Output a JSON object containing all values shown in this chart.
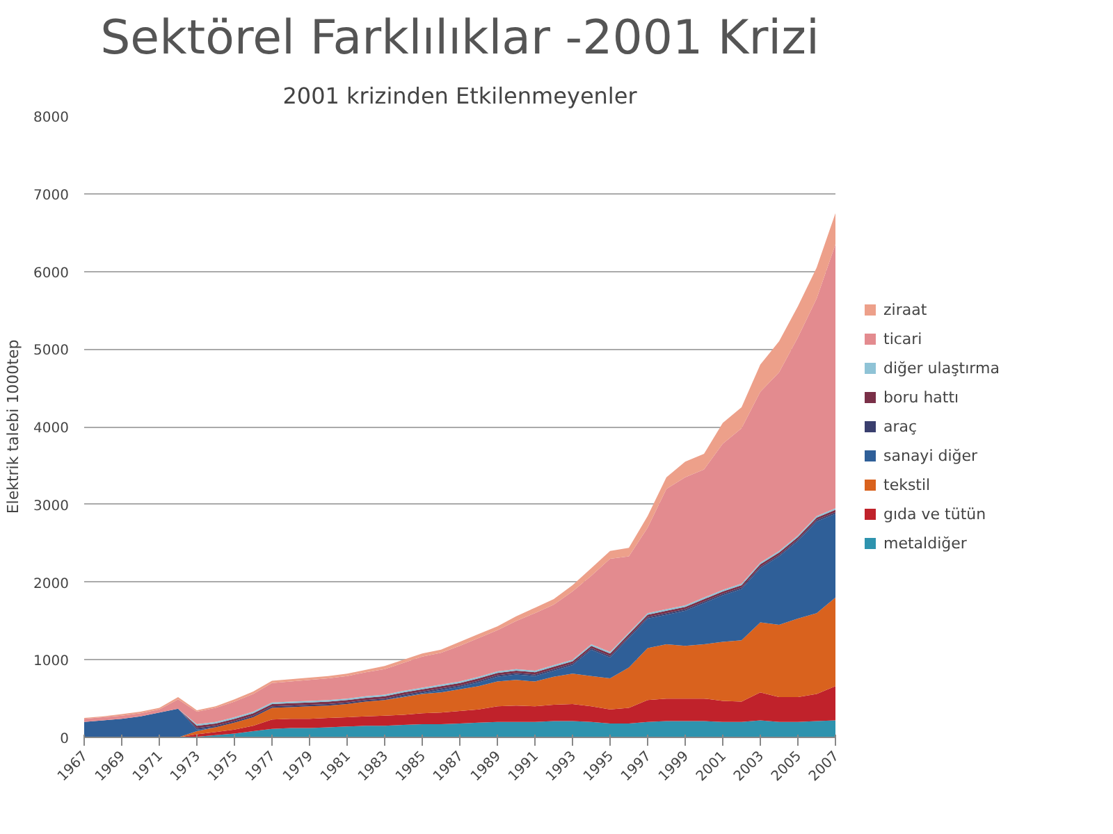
{
  "chart_data": {
    "type": "area",
    "stacked": true,
    "title": "Sektörel Farklılıklar -2001 Krizi",
    "subtitle": "2001 krizinden Etkilenmeyenler",
    "ylabel": "Elektrik talebi 1000tep",
    "x": [
      1967,
      1968,
      1969,
      1970,
      1971,
      1972,
      1973,
      1974,
      1975,
      1976,
      1977,
      1978,
      1979,
      1980,
      1981,
      1982,
      1983,
      1984,
      1985,
      1986,
      1987,
      1988,
      1989,
      1990,
      1991,
      1992,
      1993,
      1994,
      1995,
      1996,
      1997,
      1998,
      1999,
      2000,
      2001,
      2002,
      2003,
      2004,
      2005,
      2006,
      2007
    ],
    "xlim": [
      1967,
      2007
    ],
    "xticks": [
      1967,
      1969,
      1971,
      1973,
      1975,
      1977,
      1979,
      1981,
      1983,
      1985,
      1987,
      1989,
      1991,
      1993,
      1995,
      1997,
      1999,
      2001,
      2003,
      2005,
      2007
    ],
    "ylim": [
      0,
      8000
    ],
    "yticks": [
      0,
      1000,
      2000,
      3000,
      4000,
      5000,
      6000,
      7000,
      8000
    ],
    "grid": "y",
    "legend": "right",
    "series": [
      {
        "name": "metaldiğer",
        "color": "#2e93ae",
        "values": [
          0,
          0,
          0,
          0,
          0,
          0,
          10,
          30,
          50,
          80,
          110,
          120,
          120,
          130,
          140,
          150,
          150,
          160,
          170,
          170,
          180,
          190,
          200,
          200,
          200,
          210,
          210,
          200,
          180,
          180,
          200,
          210,
          210,
          210,
          200,
          200,
          220,
          200,
          200,
          210,
          220
        ]
      },
      {
        "name": "gıda ve tütün",
        "color": "#c0222b",
        "values": [
          0,
          0,
          0,
          0,
          0,
          0,
          30,
          40,
          50,
          70,
          120,
          120,
          120,
          120,
          120,
          120,
          130,
          130,
          140,
          150,
          160,
          170,
          200,
          210,
          200,
          210,
          220,
          200,
          180,
          200,
          280,
          290,
          290,
          290,
          270,
          260,
          360,
          320,
          320,
          350,
          440
        ]
      },
      {
        "name": "tekstil",
        "color": "#d9621e",
        "values": [
          0,
          0,
          0,
          0,
          0,
          0,
          40,
          60,
          90,
          110,
          150,
          150,
          160,
          160,
          170,
          190,
          200,
          230,
          250,
          260,
          280,
          300,
          320,
          330,
          320,
          360,
          390,
          390,
          400,
          520,
          670,
          700,
          680,
          700,
          760,
          790,
          900,
          930,
          1010,
          1040,
          1140
        ]
      },
      {
        "name": "sanayi diğer",
        "color": "#2f5f98",
        "values": [
          200,
          220,
          240,
          270,
          320,
          370,
          20,
          0,
          0,
          0,
          0,
          0,
          0,
          0,
          0,
          0,
          0,
          10,
          10,
          30,
          30,
          50,
          60,
          70,
          70,
          80,
          110,
          340,
          270,
          380,
          380,
          380,
          450,
          530,
          600,
          660,
          700,
          880,
          1000,
          1180,
          1080
        ]
      },
      {
        "name": "araç",
        "color": "#3a3f6e",
        "values": [
          0,
          0,
          0,
          0,
          0,
          0,
          20,
          20,
          20,
          20,
          20,
          20,
          20,
          20,
          20,
          20,
          20,
          20,
          20,
          20,
          20,
          20,
          20,
          20,
          20,
          20,
          20,
          20,
          20,
          20,
          20,
          20,
          20,
          20,
          20,
          20,
          20,
          20,
          20,
          20,
          20
        ]
      },
      {
        "name": "boru hattı",
        "color": "#7a3048",
        "values": [
          0,
          0,
          0,
          0,
          0,
          0,
          30,
          30,
          30,
          30,
          30,
          30,
          30,
          30,
          30,
          30,
          30,
          30,
          30,
          30,
          30,
          30,
          30,
          30,
          30,
          30,
          30,
          30,
          30,
          30,
          30,
          30,
          30,
          30,
          30,
          30,
          30,
          30,
          30,
          30,
          30
        ]
      },
      {
        "name": "diğer ulaştırma",
        "color": "#8fc3d6",
        "values": [
          0,
          0,
          0,
          0,
          0,
          0,
          20,
          20,
          20,
          20,
          20,
          20,
          20,
          20,
          20,
          20,
          20,
          20,
          20,
          20,
          20,
          20,
          20,
          20,
          20,
          20,
          20,
          20,
          20,
          20,
          20,
          20,
          20,
          20,
          20,
          20,
          20,
          20,
          20,
          20,
          20
        ]
      },
      {
        "name": "ticari",
        "color": "#e38b8f",
        "values": [
          40,
          40,
          40,
          40,
          40,
          120,
          160,
          180,
          200,
          230,
          250,
          260,
          270,
          280,
          290,
          310,
          330,
          360,
          400,
          410,
          460,
          500,
          530,
          620,
          740,
          780,
          880,
          880,
          1200,
          980,
          1100,
          1550,
          1650,
          1650,
          1880,
          2000,
          2200,
          2300,
          2550,
          2800,
          3400
        ]
      },
      {
        "name": "ziraat",
        "color": "#eda08a",
        "values": [
          10,
          10,
          20,
          20,
          20,
          30,
          20,
          20,
          30,
          30,
          30,
          30,
          30,
          30,
          30,
          30,
          40,
          40,
          40,
          40,
          50,
          50,
          50,
          60,
          70,
          70,
          80,
          100,
          100,
          110,
          150,
          150,
          200,
          200,
          270,
          270,
          350,
          400,
          400,
          400,
          400
        ]
      }
    ]
  }
}
